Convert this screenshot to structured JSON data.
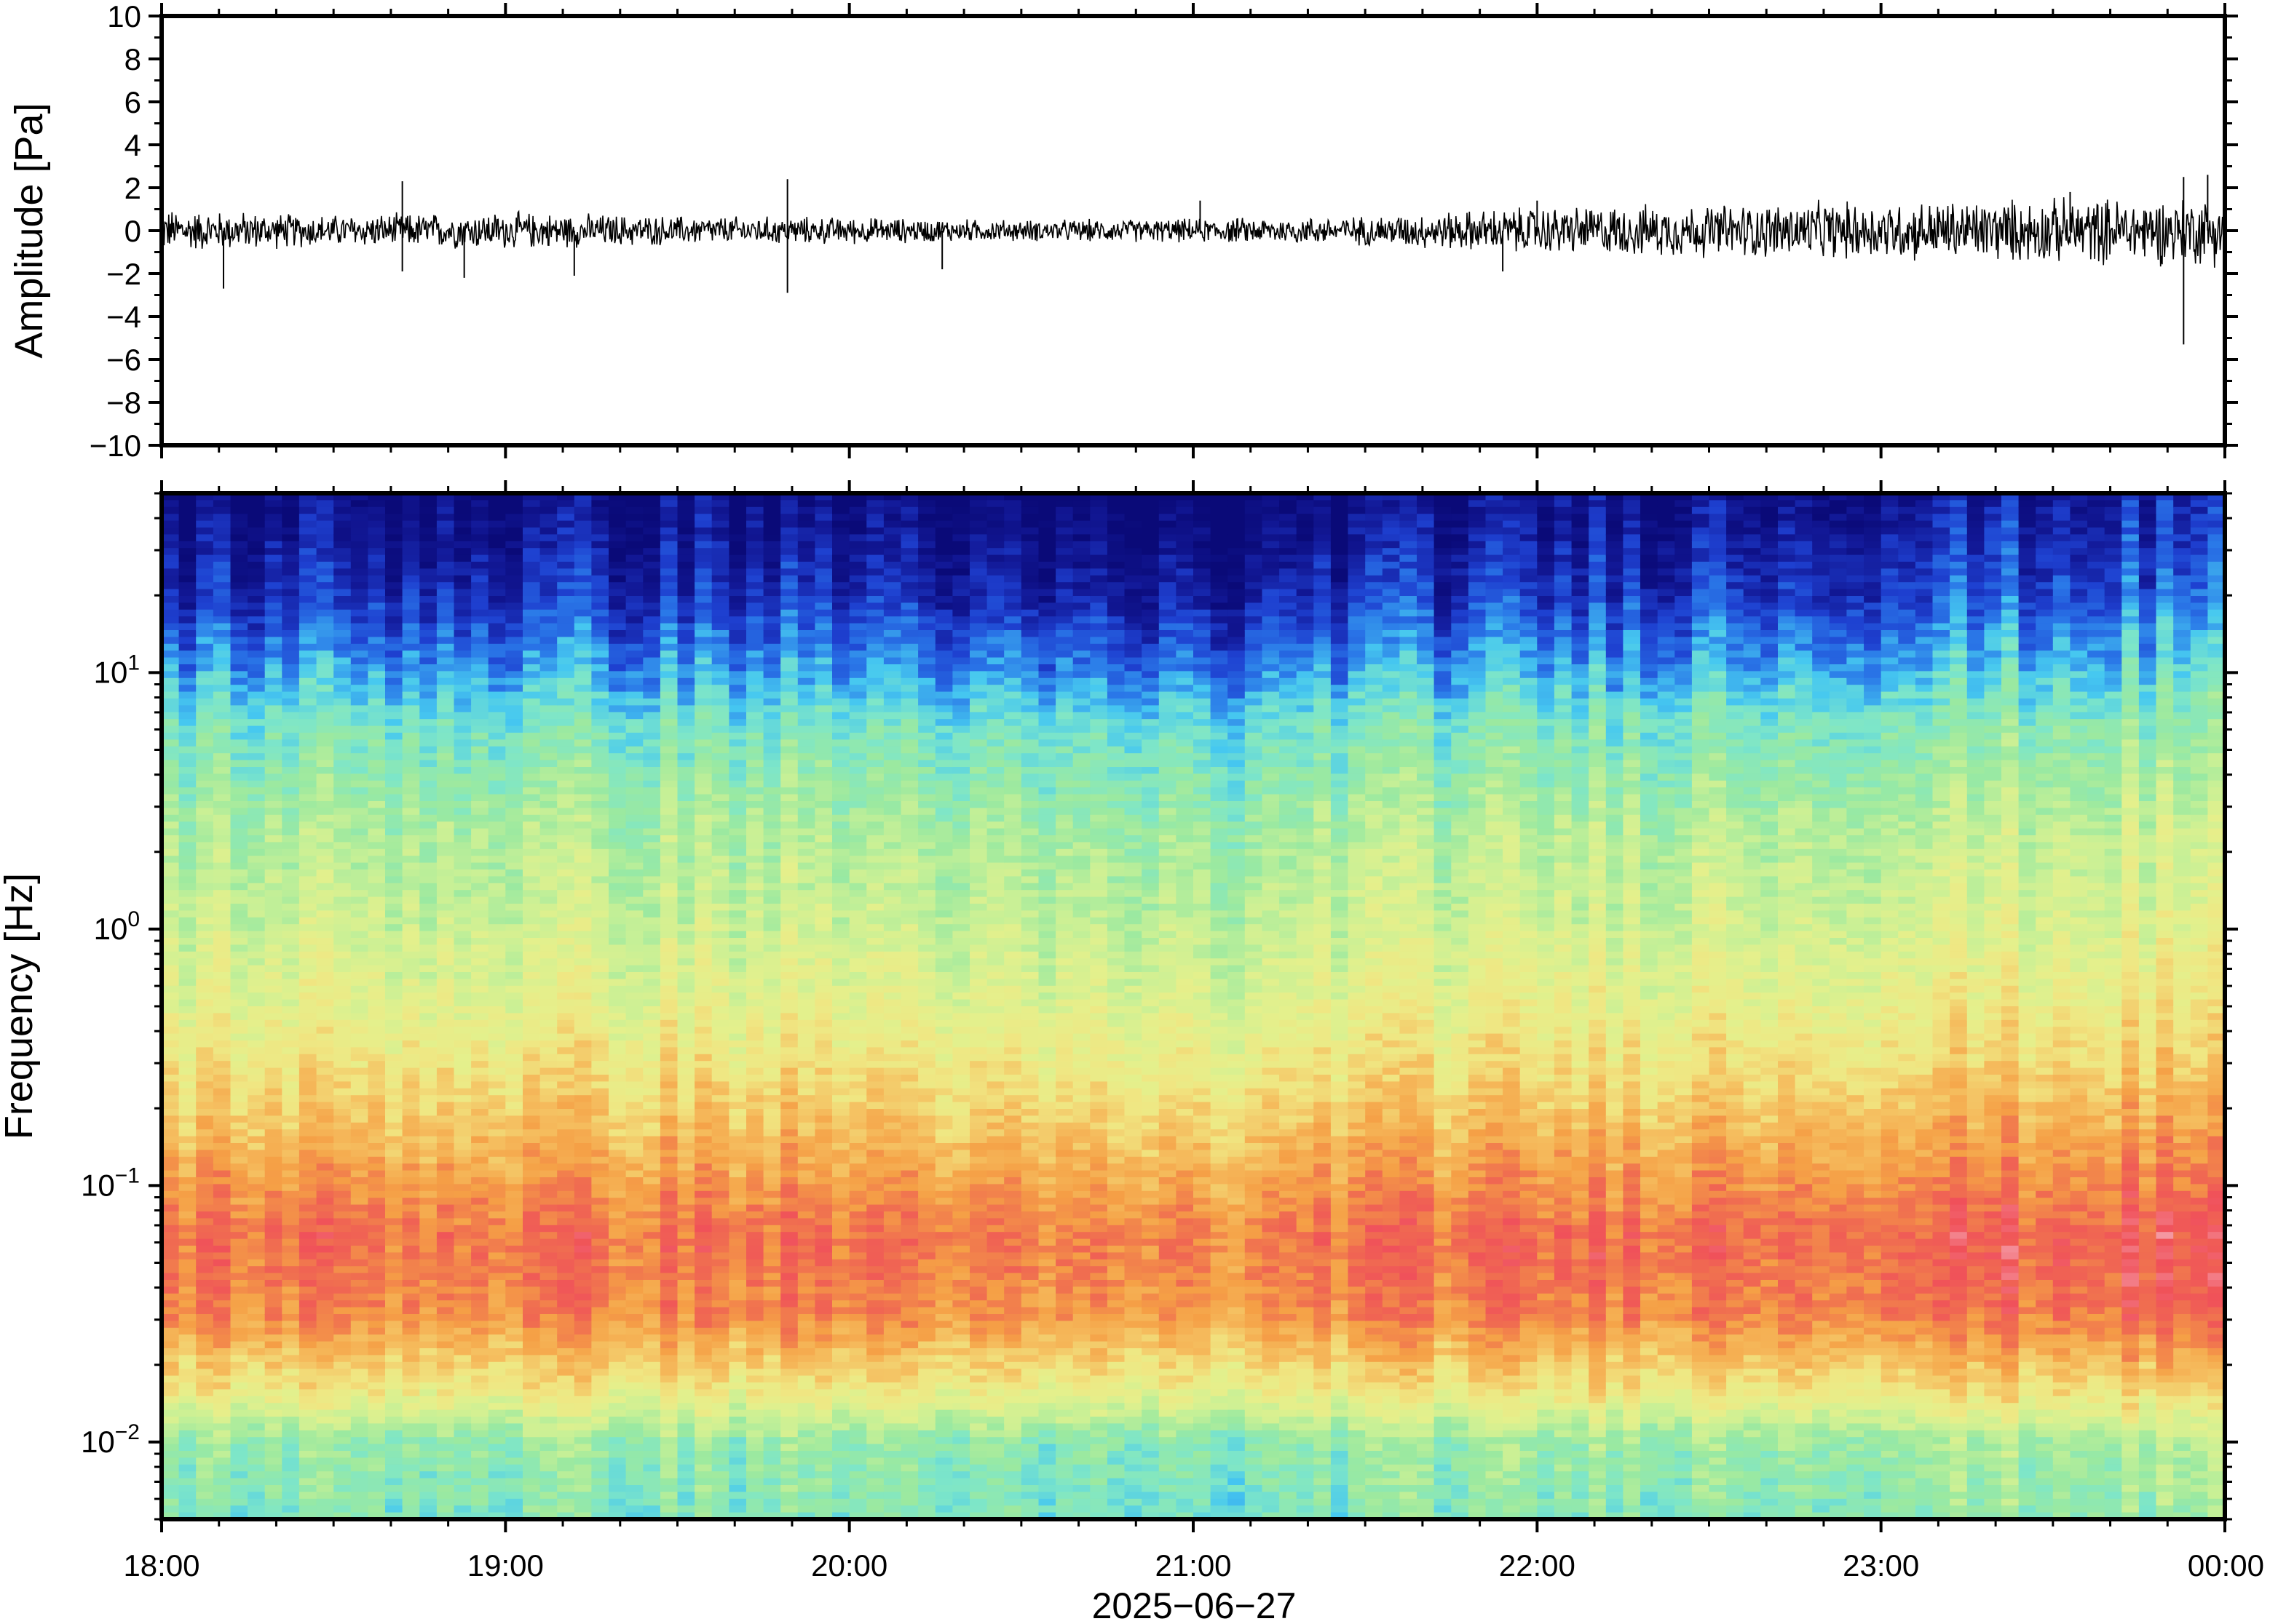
{
  "chart_data": [
    {
      "type": "line",
      "panel": "waveform",
      "ylabel": "Amplitude [Pa]",
      "ylim": [
        -10,
        10
      ],
      "y_ticks": [
        "10",
        "8",
        "6",
        "4",
        "2",
        "0",
        "−2",
        "−4",
        "−6",
        "−8",
        "−10"
      ],
      "y_tick_values": [
        10,
        8,
        6,
        4,
        2,
        0,
        -2,
        -4,
        -6,
        -8,
        -10
      ],
      "xlim": [
        "18:00",
        "00:00"
      ],
      "series_color": "#000000",
      "envelope": {
        "hours": [
          18.0,
          18.5,
          19.0,
          19.5,
          20.0,
          20.5,
          21.0,
          21.5,
          22.0,
          22.5,
          23.0,
          23.5,
          24.0
        ],
        "typical_amplitude": [
          0.8,
          0.6,
          0.7,
          0.55,
          0.5,
          0.4,
          0.45,
          0.55,
          0.9,
          1.0,
          1.1,
          1.2,
          1.3
        ]
      },
      "spikes": [
        {
          "hour": 18.18,
          "value": -2.7
        },
        {
          "hour": 18.7,
          "value": 2.3
        },
        {
          "hour": 18.7,
          "value": -1.9
        },
        {
          "hour": 18.88,
          "value": -2.2
        },
        {
          "hour": 19.2,
          "value": -2.1
        },
        {
          "hour": 19.82,
          "value": 2.4
        },
        {
          "hour": 19.82,
          "value": -2.9
        },
        {
          "hour": 20.27,
          "value": -1.8
        },
        {
          "hour": 21.02,
          "value": 1.4
        },
        {
          "hour": 21.9,
          "value": -1.9
        },
        {
          "hour": 22.0,
          "value": 1.4
        },
        {
          "hour": 23.55,
          "value": 1.8
        },
        {
          "hour": 23.88,
          "value": 2.5
        },
        {
          "hour": 23.88,
          "value": -5.3
        },
        {
          "hour": 23.95,
          "value": 2.6
        }
      ]
    },
    {
      "type": "heatmap",
      "panel": "spectrogram",
      "ylabel": "Frequency [Hz]",
      "y_scale": "log",
      "ylim": [
        0.005,
        50
      ],
      "y_ticks": [
        {
          "base": "10",
          "exp": "−2",
          "value": 0.01
        },
        {
          "base": "10",
          "exp": "−1",
          "value": 0.1
        },
        {
          "base": "10",
          "exp": "0",
          "value": 1
        },
        {
          "base": "10",
          "exp": "1",
          "value": 10
        }
      ],
      "colormap": "rainbow (low = dark blue, high = red/pink)",
      "pattern": "highest power near 0.03–0.3 Hz (red/orange), moderate 0.3–5 Hz (yellow/green), low power above 10 Hz (blue), lowest near Nyquist (dark blue); cyan/green band below 0.015 Hz",
      "x_labels": [
        "18:00",
        "19:00",
        "20:00",
        "21:00",
        "22:00",
        "23:00",
        "00:00"
      ],
      "x_tick_hours": [
        18,
        19,
        20,
        21,
        22,
        23,
        24
      ],
      "xlabel": "2025−06−27"
    }
  ],
  "colors": {
    "deep_blue": "#0a0a78",
    "blue": "#1e50dc",
    "cyan": "#46c8f0",
    "green": "#9be9a0",
    "yellow": "#f0e682",
    "orange": "#f5a046",
    "red": "#f0505a",
    "pink": "#f5a0aa"
  }
}
